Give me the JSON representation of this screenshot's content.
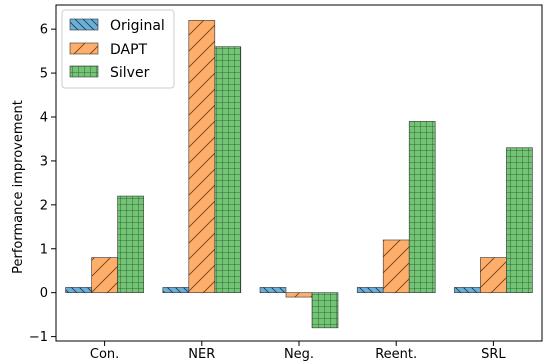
{
  "chart_data": {
    "type": "bar",
    "categories": [
      "Con.",
      "NER",
      "Neg.",
      "Reent.",
      "SRL"
    ],
    "series": [
      {
        "name": "Original",
        "values": [
          0.12,
          0.12,
          0.12,
          0.12,
          0.12
        ],
        "color": "#6baed6",
        "hatch": "backslash"
      },
      {
        "name": "DAPT",
        "values": [
          0.8,
          6.2,
          -0.1,
          1.2,
          0.8
        ],
        "color": "#fdae6b",
        "hatch": "slash"
      },
      {
        "name": "Silver",
        "values": [
          2.2,
          5.6,
          -0.8,
          3.9,
          3.3
        ],
        "color": "#74c476",
        "hatch": "grid"
      }
    ],
    "xlabel": "",
    "ylabel": "Performance improvement",
    "ylim": [
      -1.1,
      6.55
    ],
    "yticks": [
      -1,
      0,
      1,
      2,
      3,
      4,
      5,
      6
    ],
    "grid": false,
    "legend_position": "top-left"
  }
}
